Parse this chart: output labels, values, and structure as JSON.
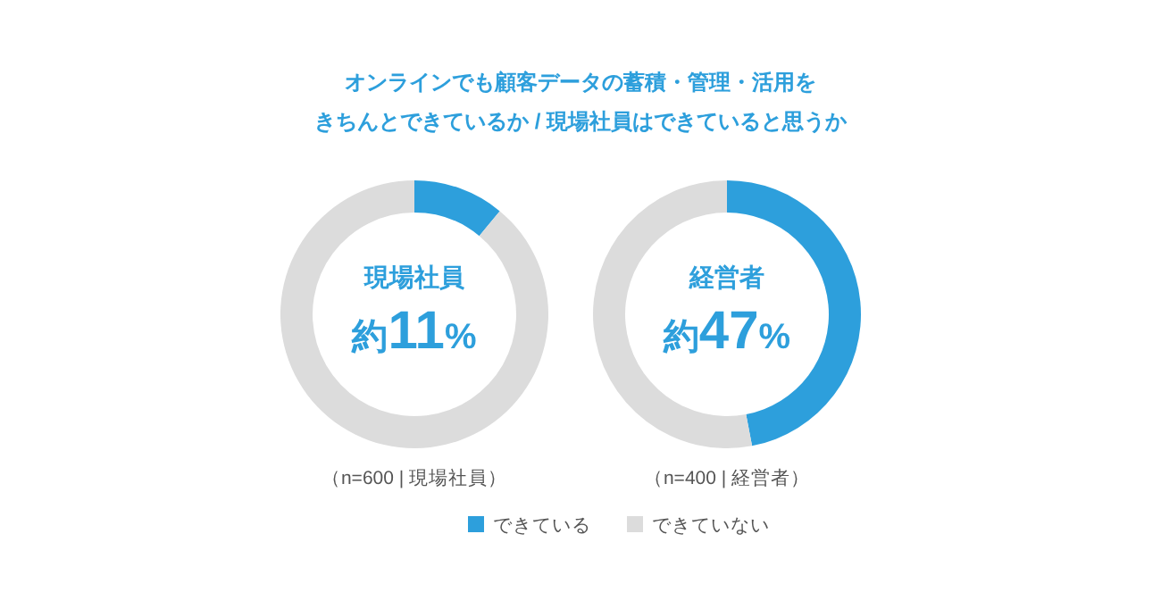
{
  "chart_data": [
    {
      "type": "donut",
      "title": "オンラインでも顧客データの蓄積・管理・活用を",
      "subtitle": "きちんとできているか / 現場社員はできていると思うか",
      "categories": [
        "できている",
        "できていない"
      ],
      "values": [
        11,
        89
      ],
      "colors": [
        "#2d9fdc",
        "#dcdcdc"
      ],
      "annotations": [
        "現場社員",
        "約11%",
        "（n=600 | 現場社員）"
      ],
      "legend": "bottom"
    },
    {
      "type": "donut",
      "categories": [
        null,
        null
      ],
      "values": [
        47,
        53
      ],
      "colors": [
        "#2d9fdc",
        "#dcdcdc"
      ],
      "annotations": [
        "経営者",
        "約47%",
        "（n=400 | 経営者）"
      ]
    }
  ]
}
